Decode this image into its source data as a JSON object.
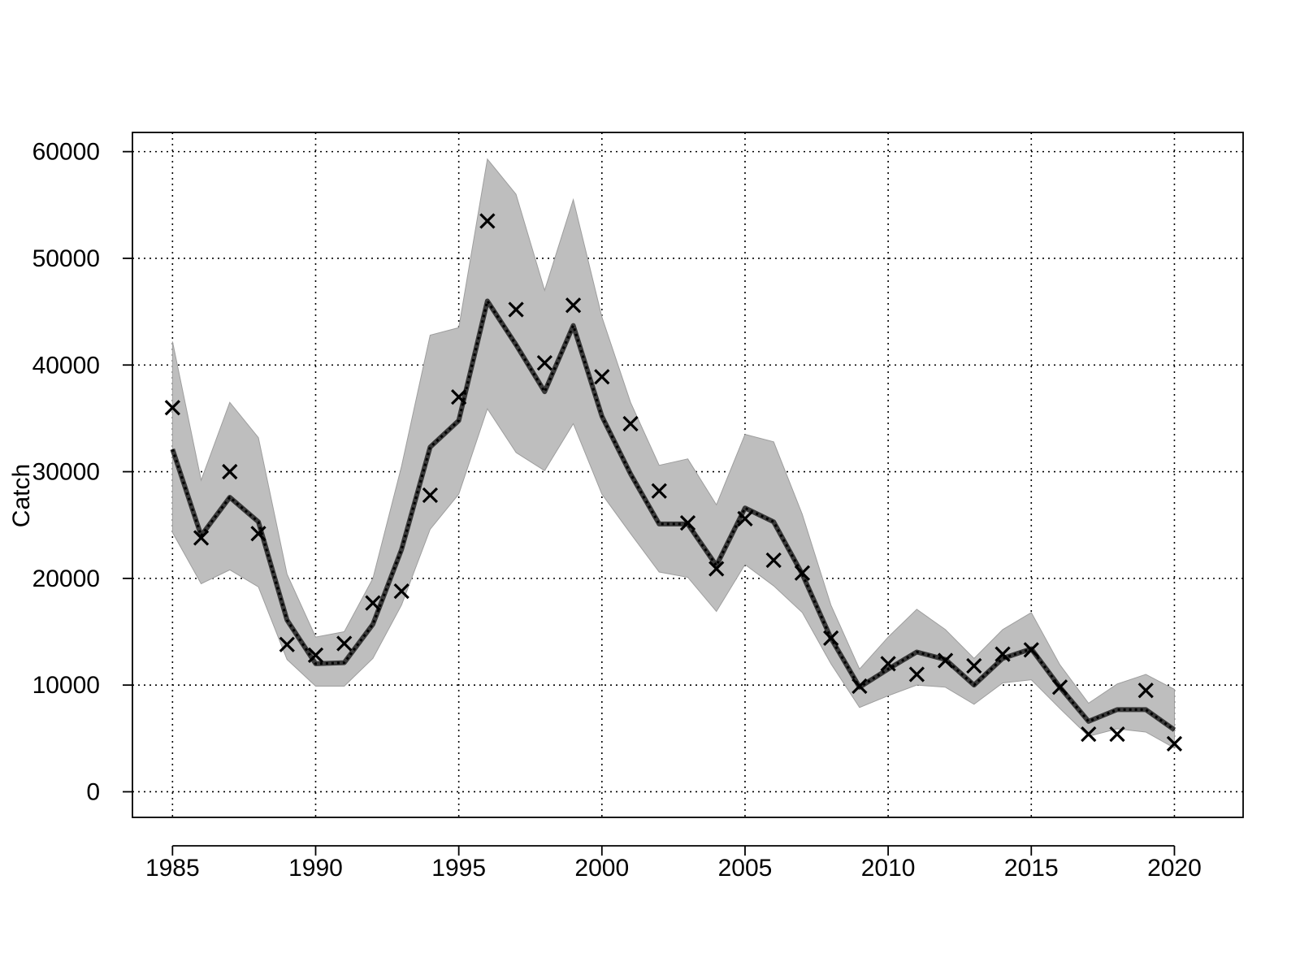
{
  "chart_data": {
    "type": "line",
    "title": "",
    "xlabel": "",
    "ylabel": "Catch",
    "xlim": [
      1983.6,
      2022.4
    ],
    "ylim": [
      -2400,
      61800
    ],
    "x_ticks": [
      1985,
      1990,
      1995,
      2000,
      2005,
      2010,
      2015,
      2020
    ],
    "y_ticks": [
      0,
      10000,
      20000,
      30000,
      40000,
      50000,
      60000
    ],
    "x_tick_labels": [
      "1985",
      "1990",
      "1995",
      "2000",
      "2005",
      "2010",
      "2015",
      "2020"
    ],
    "y_tick_labels": [
      "0",
      "10000",
      "20000",
      "30000",
      "40000",
      "50000",
      "60000"
    ],
    "grid": true,
    "legend": "none",
    "x": [
      1985,
      1986,
      1987,
      1988,
      1989,
      1990,
      1991,
      1992,
      1993,
      1994,
      1995,
      1996,
      1997,
      1998,
      1999,
      2000,
      2001,
      2002,
      2003,
      2004,
      2005,
      2006,
      2007,
      2008,
      2009,
      2010,
      2011,
      2012,
      2013,
      2014,
      2015,
      2016,
      2017,
      2018,
      2019,
      2020
    ],
    "series": [
      {
        "role": "confidence_band_upper",
        "values": [
          42200,
          29200,
          36500,
          33200,
          20400,
          14500,
          15000,
          20000,
          30500,
          42800,
          43500,
          59300,
          56000,
          47000,
          55500,
          44500,
          36500,
          30600,
          31200,
          26900,
          33500,
          32800,
          26000,
          17500,
          11500,
          14500,
          17100,
          15200,
          12500,
          15200,
          16800,
          11900,
          8300,
          10100,
          11000,
          9600
        ]
      },
      {
        "role": "confidence_band_lower",
        "values": [
          24300,
          19500,
          20800,
          19200,
          12400,
          9900,
          9900,
          12500,
          17500,
          24600,
          27900,
          35900,
          31800,
          30100,
          34500,
          27900,
          24200,
          20600,
          20100,
          16900,
          21300,
          19300,
          16800,
          12000,
          7900,
          9000,
          10000,
          9800,
          8200,
          10200,
          10500,
          7800,
          5200,
          5900,
          5600,
          4100
        ]
      },
      {
        "role": "fitted",
        "values": [
          32100,
          24000,
          27600,
          25300,
          16100,
          12000,
          12100,
          15700,
          22700,
          32300,
          34800,
          46000,
          41900,
          37500,
          43700,
          35200,
          29800,
          25100,
          25100,
          21200,
          26600,
          25300,
          20400,
          14400,
          9800,
          11500,
          13100,
          12400,
          10000,
          12500,
          13400,
          9800,
          6600,
          7700,
          7700,
          5800
        ]
      },
      {
        "role": "observed",
        "marker": "x",
        "values": [
          36000,
          23800,
          30000,
          24200,
          13800,
          12800,
          13900,
          17700,
          18800,
          27800,
          37000,
          53500,
          45200,
          40200,
          45600,
          38900,
          34500,
          28200,
          25200,
          20900,
          25600,
          21700,
          20500,
          14400,
          9900,
          12000,
          11000,
          12300,
          11800,
          12900,
          13300,
          9800,
          5400,
          5400,
          9500,
          4500
        ]
      }
    ],
    "colors": {
      "band": "#bebebe",
      "band_edge": "#9e9e9e",
      "fitted_line": "#3a3a3a",
      "fitted_dots": "#000000",
      "markers": "#000000",
      "grid": "#000000",
      "axes": "#000000"
    }
  }
}
